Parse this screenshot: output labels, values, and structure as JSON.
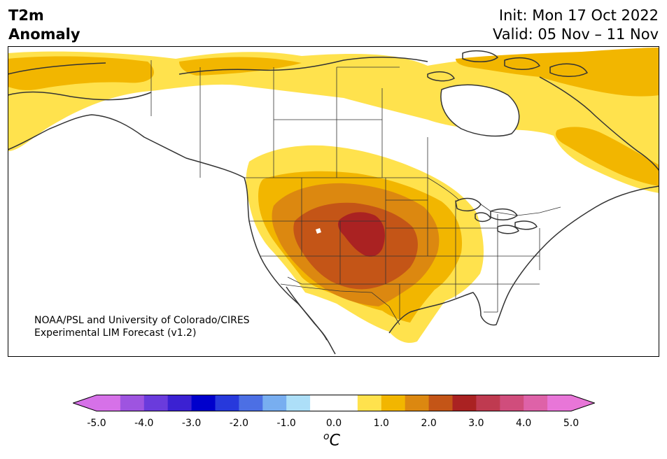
{
  "header": {
    "variable": "T2m",
    "variable_sub": "Anomaly",
    "init": "Init: Mon 17 Oct 2022",
    "valid": "Valid: 05 Nov – 11 Nov"
  },
  "credit": {
    "line1": "NOAA/PSL and University of Colorado/CIRES",
    "line2": "Experimental LIM Forecast (v1.2)"
  },
  "colorbar": {
    "ticks": [
      "-5.0",
      "-4.0",
      "-3.0",
      "-2.0",
      "-1.0",
      "0.0",
      "1.0",
      "2.0",
      "3.0",
      "4.0",
      "5.0"
    ],
    "unit_super": "o",
    "unit_main": "C",
    "colors": [
      "#d671e8",
      "#9e54e0",
      "#6a3bdc",
      "#3b21d2",
      "#0000cc",
      "#2739dc",
      "#4c6fe4",
      "#78aef0",
      "#addff8",
      "#ffffff",
      "#ffffff",
      "#ffe24d",
      "#f2b600",
      "#dc8810",
      "#c45517",
      "#aa2222",
      "#bf3a50",
      "#d04d7c",
      "#de62a8",
      "#e876d8"
    ]
  },
  "map": {
    "region": "North America",
    "land_color": "#ffffff",
    "ocean_color": "#ffffff",
    "anomaly_colors": {
      "c0_5": "#ffe24d",
      "c1_0": "#f2b600",
      "c1_5": "#dc8810",
      "c2_0": "#c45517",
      "c2_5": "#aa2222"
    }
  }
}
